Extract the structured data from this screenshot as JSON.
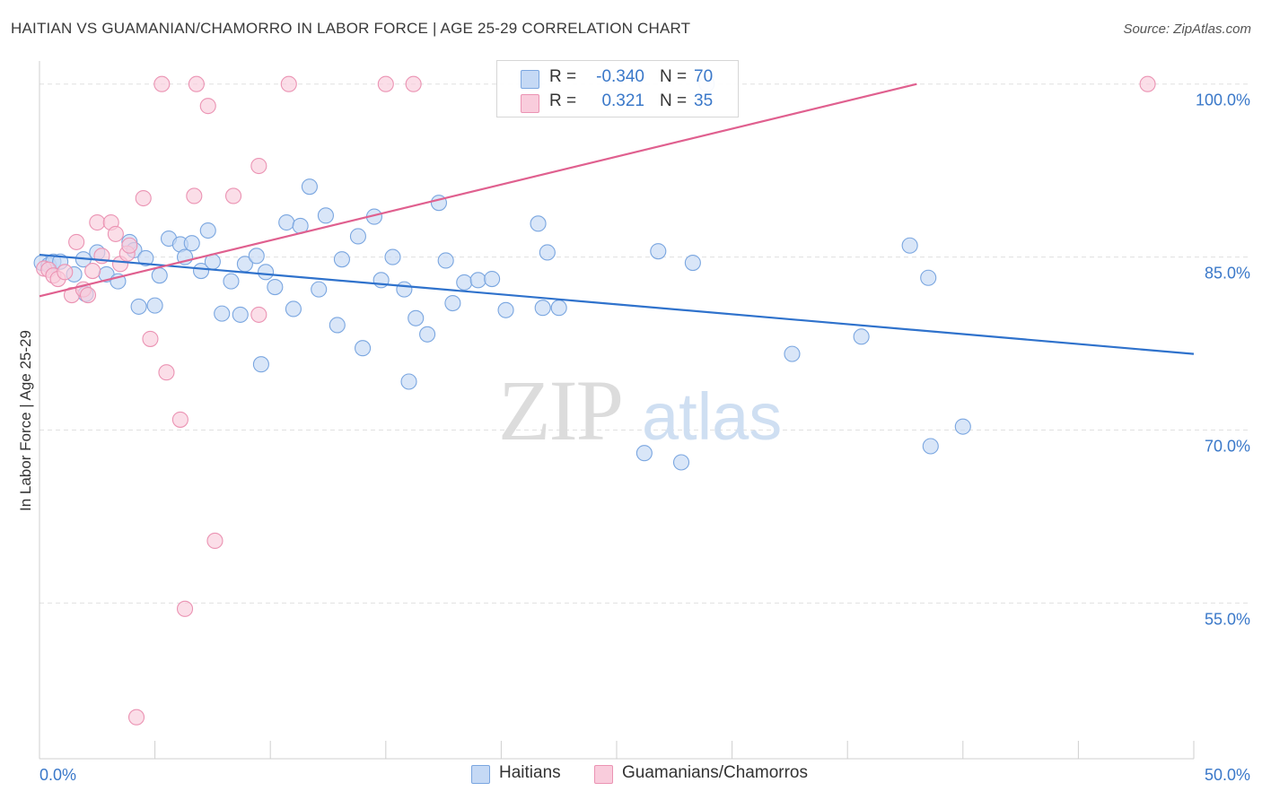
{
  "title": "HAITIAN VS GUAMANIAN/CHAMORRO IN LABOR FORCE | AGE 25-29 CORRELATION CHART",
  "source": "Source: ZipAtlas.com",
  "watermark": {
    "zip": "ZIP",
    "atlas": "atlas"
  },
  "colors": {
    "blue_fill": "#c5d9f5",
    "blue_stroke": "#7aa6e0",
    "blue_line": "#2f72cc",
    "pink_fill": "#f9ccdc",
    "pink_stroke": "#eb93b3",
    "pink_line": "#e0608f",
    "axis_text": "#3a78c9",
    "grid": "#e0e0e0"
  },
  "legend": {
    "r_label": "R =",
    "n_label": "N =",
    "haitians": {
      "r": "-0.340",
      "n": "70"
    },
    "guamanians": {
      "r": "0.321",
      "n": "35"
    }
  },
  "chart_data": {
    "type": "scatter",
    "xlabel": "",
    "ylabel": "In Labor Force | Age 25-29",
    "xlim": [
      0,
      50
    ],
    "ylim": [
      41.5,
      102
    ],
    "x_tick_labels": {
      "min": "0.0%",
      "max": "50.0%"
    },
    "y_ticks": [
      {
        "value": 100,
        "label": "100.0%"
      },
      {
        "value": 85,
        "label": "85.0%"
      },
      {
        "value": 70,
        "label": "70.0%"
      },
      {
        "value": 55,
        "label": "55.0%"
      }
    ],
    "grid": true,
    "legend_position": "top-center",
    "series": [
      {
        "name": "Haitians",
        "color": "#7aa6e0",
        "trend": {
          "x": [
            0,
            50
          ],
          "y": [
            85.2,
            76.6
          ]
        },
        "points": [
          [
            0.1,
            84.5
          ],
          [
            0.4,
            84.3
          ],
          [
            0.6,
            84.6
          ],
          [
            0.9,
            84.6
          ],
          [
            1.5,
            83.5
          ],
          [
            1.9,
            84.8
          ],
          [
            2.0,
            81.8
          ],
          [
            2.5,
            85.4
          ],
          [
            2.9,
            83.5
          ],
          [
            3.4,
            82.9
          ],
          [
            3.9,
            86.3
          ],
          [
            4.1,
            85.6
          ],
          [
            4.3,
            80.7
          ],
          [
            4.6,
            84.9
          ],
          [
            5.0,
            80.8
          ],
          [
            5.2,
            83.4
          ],
          [
            5.6,
            86.6
          ],
          [
            6.1,
            86.1
          ],
          [
            6.3,
            85.0
          ],
          [
            6.6,
            86.2
          ],
          [
            7.0,
            83.8
          ],
          [
            7.3,
            87.3
          ],
          [
            7.5,
            84.6
          ],
          [
            7.9,
            80.1
          ],
          [
            8.3,
            82.9
          ],
          [
            8.7,
            80.0
          ],
          [
            8.9,
            84.4
          ],
          [
            9.4,
            85.1
          ],
          [
            9.6,
            75.7
          ],
          [
            9.8,
            83.7
          ],
          [
            10.2,
            82.4
          ],
          [
            10.7,
            88.0
          ],
          [
            11.0,
            80.5
          ],
          [
            11.3,
            87.7
          ],
          [
            11.7,
            91.1
          ],
          [
            12.1,
            82.2
          ],
          [
            12.4,
            88.6
          ],
          [
            12.9,
            79.1
          ],
          [
            13.1,
            84.8
          ],
          [
            13.8,
            86.8
          ],
          [
            14.0,
            77.1
          ],
          [
            14.5,
            88.5
          ],
          [
            14.8,
            83.0
          ],
          [
            15.3,
            85.0
          ],
          [
            15.8,
            82.2
          ],
          [
            16.0,
            74.2
          ],
          [
            16.3,
            79.7
          ],
          [
            16.8,
            78.3
          ],
          [
            17.3,
            89.7
          ],
          [
            17.6,
            84.7
          ],
          [
            17.9,
            81.0
          ],
          [
            18.4,
            82.8
          ],
          [
            19.0,
            83.0
          ],
          [
            19.6,
            83.1
          ],
          [
            20.2,
            80.4
          ],
          [
            21.6,
            87.9
          ],
          [
            21.8,
            80.6
          ],
          [
            22.0,
            85.4
          ],
          [
            22.5,
            80.6
          ],
          [
            26.2,
            68.0
          ],
          [
            26.8,
            85.5
          ],
          [
            27.8,
            67.2
          ],
          [
            28.3,
            84.5
          ],
          [
            28.9,
            100.0
          ],
          [
            32.6,
            76.6
          ],
          [
            35.6,
            78.1
          ],
          [
            37.7,
            86.0
          ],
          [
            38.5,
            83.2
          ],
          [
            38.6,
            68.6
          ],
          [
            40.0,
            70.3
          ]
        ]
      },
      {
        "name": "Guamanians/Chamorros",
        "color": "#eb93b3",
        "trend": {
          "x": [
            0,
            38
          ],
          "y": [
            81.6,
            100.0
          ]
        },
        "points": [
          [
            0.2,
            84.0
          ],
          [
            0.4,
            83.9
          ],
          [
            0.6,
            83.4
          ],
          [
            0.8,
            83.1
          ],
          [
            1.1,
            83.7
          ],
          [
            1.4,
            81.7
          ],
          [
            1.6,
            86.3
          ],
          [
            1.9,
            82.2
          ],
          [
            2.1,
            81.7
          ],
          [
            2.3,
            83.8
          ],
          [
            2.5,
            88.0
          ],
          [
            2.7,
            85.1
          ],
          [
            3.1,
            88.0
          ],
          [
            3.3,
            87.0
          ],
          [
            3.5,
            84.4
          ],
          [
            3.8,
            85.3
          ],
          [
            3.9,
            86.0
          ],
          [
            4.2,
            45.1
          ],
          [
            4.5,
            90.1
          ],
          [
            4.8,
            77.9
          ],
          [
            5.3,
            100.0
          ],
          [
            5.5,
            75.0
          ],
          [
            6.1,
            70.9
          ],
          [
            6.3,
            54.5
          ],
          [
            6.7,
            90.3
          ],
          [
            6.8,
            100.0
          ],
          [
            7.3,
            98.1
          ],
          [
            7.6,
            60.4
          ],
          [
            8.4,
            90.3
          ],
          [
            9.5,
            92.9
          ],
          [
            9.5,
            80.0
          ],
          [
            10.8,
            100.0
          ],
          [
            15.0,
            100.0
          ],
          [
            16.2,
            100.0
          ],
          [
            48.0,
            100.0
          ]
        ]
      }
    ]
  }
}
